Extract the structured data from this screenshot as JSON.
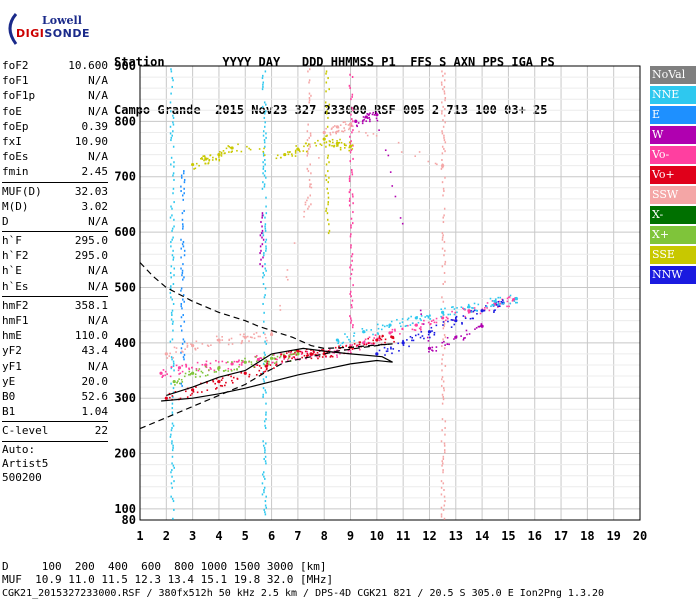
{
  "logo": {
    "line1": "Lowell",
    "line2a": "DIGI",
    "line2b": "SONDE"
  },
  "header": {
    "labels": "Station        YYYY DAY   DDD HHMMSS P1  FFS S AXN PPS IGA PS",
    "values": "Campo Grande  2015 Nov23 327 233000 RSF 005 2 713 100 03+ 25"
  },
  "params": [
    {
      "group": [
        {
          "k": "foF2",
          "v": "10.600"
        },
        {
          "k": "foF1",
          "v": "N/A"
        },
        {
          "k": "foF1p",
          "v": "N/A"
        },
        {
          "k": "foE",
          "v": "N/A"
        },
        {
          "k": "foEp",
          "v": "0.39"
        },
        {
          "k": "fxI",
          "v": "10.90"
        },
        {
          "k": "foEs",
          "v": "N/A"
        },
        {
          "k": "fmin",
          "v": "2.45"
        }
      ]
    },
    {
      "group": [
        {
          "k": "MUF(D)",
          "v": "32.03"
        },
        {
          "k": "M(D)",
          "v": "3.02"
        },
        {
          "k": "D",
          "v": "N/A"
        }
      ]
    },
    {
      "group": [
        {
          "k": "h`F",
          "v": "295.0"
        },
        {
          "k": "h`F2",
          "v": "295.0"
        },
        {
          "k": "h`E",
          "v": "N/A"
        },
        {
          "k": "h`Es",
          "v": "N/A"
        }
      ]
    },
    {
      "group": [
        {
          "k": "hmF2",
          "v": "358.1"
        },
        {
          "k": "hmF1",
          "v": "N/A"
        },
        {
          "k": "hmE",
          "v": "110.0"
        },
        {
          "k": "yF2",
          "v": "43.4"
        },
        {
          "k": "yF1",
          "v": "N/A"
        },
        {
          "k": "yE",
          "v": "20.0"
        },
        {
          "k": "B0",
          "v": "52.6"
        },
        {
          "k": "B1",
          "v": "1.04"
        }
      ]
    },
    {
      "group": [
        {
          "k": "C-level",
          "v": "22"
        }
      ]
    }
  ],
  "auto": [
    "Auto:",
    "Artist5",
    "500200"
  ],
  "footer": {
    "d_line": "D     100  200  400  600  800 1000 1500 3000 [km]",
    "muf_line": "MUF  10.9 11.0 11.5 12.3 13.4 15.1 19.8 32.0 [MHz]",
    "file_line": "CGK21_2015327233000.RSF / 380fx512h 50 kHz 2.5 km / DPS-4D CGK21 821 / 20.5 S 305.0 E Ion2Png 1.3.20"
  },
  "legend": [
    {
      "label": "NoVal",
      "color": "#7f7f7f"
    },
    {
      "label": "NNE",
      "color": "#2ec8ef"
    },
    {
      "label": "E",
      "color": "#1e90ff"
    },
    {
      "label": "W",
      "color": "#b000b0"
    },
    {
      "label": "Vo-",
      "color": "#ff3fa0"
    },
    {
      "label": "Vo+",
      "color": "#e0001a"
    },
    {
      "label": "SSW",
      "color": "#f4a6a6"
    },
    {
      "label": "X-",
      "color": "#007000"
    },
    {
      "label": "X+",
      "color": "#7fc43a"
    },
    {
      "label": "SSE",
      "color": "#c8c800"
    },
    {
      "label": "NNW",
      "color": "#1a1ae0"
    }
  ],
  "chart_data": {
    "type": "scatter",
    "title": "",
    "xlabel": "",
    "ylabel": "",
    "xlim": [
      1,
      20
    ],
    "ylim": [
      80,
      900
    ],
    "x_ticks": [
      1,
      2,
      3,
      4,
      5,
      6,
      7,
      8,
      9,
      10,
      11,
      12,
      13,
      14,
      15,
      16,
      17,
      18,
      19,
      20
    ],
    "y_ticks": [
      80,
      100,
      200,
      300,
      400,
      500,
      600,
      700,
      800,
      900
    ],
    "grid": true,
    "series": [
      {
        "color": "#ff3fa0",
        "values": [
          [
            1.8,
            345
          ],
          [
            2.5,
            355
          ],
          [
            3.5,
            360
          ],
          [
            4.5,
            362
          ],
          [
            5.5,
            370
          ],
          [
            6.5,
            375
          ],
          [
            7.5,
            378
          ],
          [
            8.5,
            385
          ],
          [
            9.5,
            400
          ],
          [
            10.5,
            418
          ],
          [
            11.5,
            432
          ],
          [
            12.5,
            445
          ],
          [
            13.5,
            458
          ],
          [
            14.5,
            470
          ],
          [
            15.2,
            478
          ]
        ]
      },
      {
        "color": "#e0001a",
        "values": [
          [
            2,
            300
          ],
          [
            3,
            315
          ],
          [
            4,
            330
          ],
          [
            5,
            345
          ],
          [
            5.8,
            358
          ],
          [
            6.5,
            375
          ],
          [
            7,
            385
          ],
          [
            7.5,
            380
          ],
          [
            8,
            380
          ],
          [
            9,
            392
          ],
          [
            10,
            405
          ],
          [
            10.6,
            410
          ]
        ]
      },
      {
        "color": "#1a1ae0",
        "values": [
          [
            10,
            380
          ],
          [
            11,
            400
          ],
          [
            12,
            420
          ],
          [
            13,
            440
          ],
          [
            14,
            458
          ],
          [
            14.8,
            472
          ]
        ]
      },
      {
        "color": "#2ec8ef",
        "values": [
          [
            8.5,
            405
          ],
          [
            9.5,
            420
          ],
          [
            10.5,
            432
          ],
          [
            11.5,
            445
          ],
          [
            12.5,
            455
          ],
          [
            13.5,
            465
          ],
          [
            14.5,
            475
          ],
          [
            15.3,
            480
          ]
        ]
      },
      {
        "color": "#c8c800",
        "values": [
          [
            3,
            722
          ],
          [
            3.5,
            732
          ],
          [
            4,
            740
          ],
          [
            4.5,
            752
          ],
          [
            6.5,
            740
          ],
          [
            7,
            750
          ],
          [
            8,
            768
          ],
          [
            8.5,
            760
          ],
          [
            9,
            755
          ]
        ]
      },
      {
        "color": "#f4a6a6",
        "values": [
          [
            2,
            380
          ],
          [
            3,
            395
          ],
          [
            4,
            405
          ],
          [
            5,
            410
          ],
          [
            6,
            415
          ],
          [
            8,
            780
          ],
          [
            8.5,
            790
          ],
          [
            9,
            795
          ],
          [
            12.5,
            720
          ]
        ]
      },
      {
        "color": "#7fc43a",
        "values": [
          [
            2.3,
            330
          ],
          [
            3,
            345
          ],
          [
            4,
            355
          ],
          [
            5,
            365
          ],
          [
            6,
            372
          ],
          [
            7,
            380
          ]
        ]
      },
      {
        "color": "#b000b0",
        "values": [
          [
            9.2,
            800
          ],
          [
            9.6,
            808
          ],
          [
            10,
            812
          ],
          [
            12,
            390
          ],
          [
            13,
            410
          ],
          [
            14,
            430
          ]
        ]
      }
    ],
    "vertical_streaks": [
      {
        "x": 2.2,
        "y": [
          80,
          900
        ],
        "color": "#2ec8ef"
      },
      {
        "x": 2.6,
        "y": [
          320,
          720
        ],
        "color": "#1e90ff"
      },
      {
        "x": 5.7,
        "y": [
          80,
          900
        ],
        "color": "#2ec8ef"
      },
      {
        "x": 5.6,
        "y": [
          540,
          640
        ],
        "color": "#b000b0"
      },
      {
        "x": 7.4,
        "y": [
          640,
          900
        ],
        "color": "#f4a6a6"
      },
      {
        "x": 8.1,
        "y": [
          600,
          900
        ],
        "color": "#c8c800"
      },
      {
        "x": 9.0,
        "y": [
          430,
          900
        ],
        "color": "#ff3fa0"
      },
      {
        "x": 12.5,
        "y": [
          80,
          900
        ],
        "color": "#f4a6a6"
      }
    ],
    "curves": [
      {
        "style": "solid",
        "points": [
          [
            1.8,
            295
          ],
          [
            3,
            300
          ],
          [
            4,
            308
          ],
          [
            5,
            318
          ],
          [
            6,
            330
          ],
          [
            7,
            342
          ],
          [
            8,
            352
          ],
          [
            9,
            362
          ],
          [
            10,
            368
          ],
          [
            10.6,
            365
          ],
          [
            10.2,
            375
          ],
          [
            9,
            380
          ],
          [
            8,
            385
          ],
          [
            7.2,
            390
          ],
          [
            6,
            380
          ],
          [
            5,
            350
          ],
          [
            4,
            338
          ],
          [
            3,
            320
          ],
          [
            2,
            305
          ]
        ]
      },
      {
        "style": "dashed",
        "points": [
          [
            1,
            545
          ],
          [
            1.5,
            520
          ],
          [
            2,
            500
          ],
          [
            3,
            475
          ],
          [
            4,
            455
          ],
          [
            5,
            440
          ],
          [
            5.5,
            430
          ],
          [
            6,
            422
          ],
          [
            6.8,
            410
          ],
          [
            7.5,
            395
          ],
          [
            8,
            390
          ],
          [
            9,
            392
          ],
          [
            10,
            396
          ],
          [
            10.6,
            398
          ]
        ]
      },
      {
        "style": "dashed",
        "points": [
          [
            1,
            245
          ],
          [
            2,
            265
          ],
          [
            3,
            285
          ],
          [
            4,
            305
          ],
          [
            5,
            325
          ],
          [
            5.7,
            345
          ],
          [
            6.5,
            365
          ],
          [
            7.5,
            375
          ],
          [
            8.5,
            385
          ],
          [
            9.5,
            392
          ],
          [
            10.5,
            398
          ]
        ]
      }
    ]
  }
}
